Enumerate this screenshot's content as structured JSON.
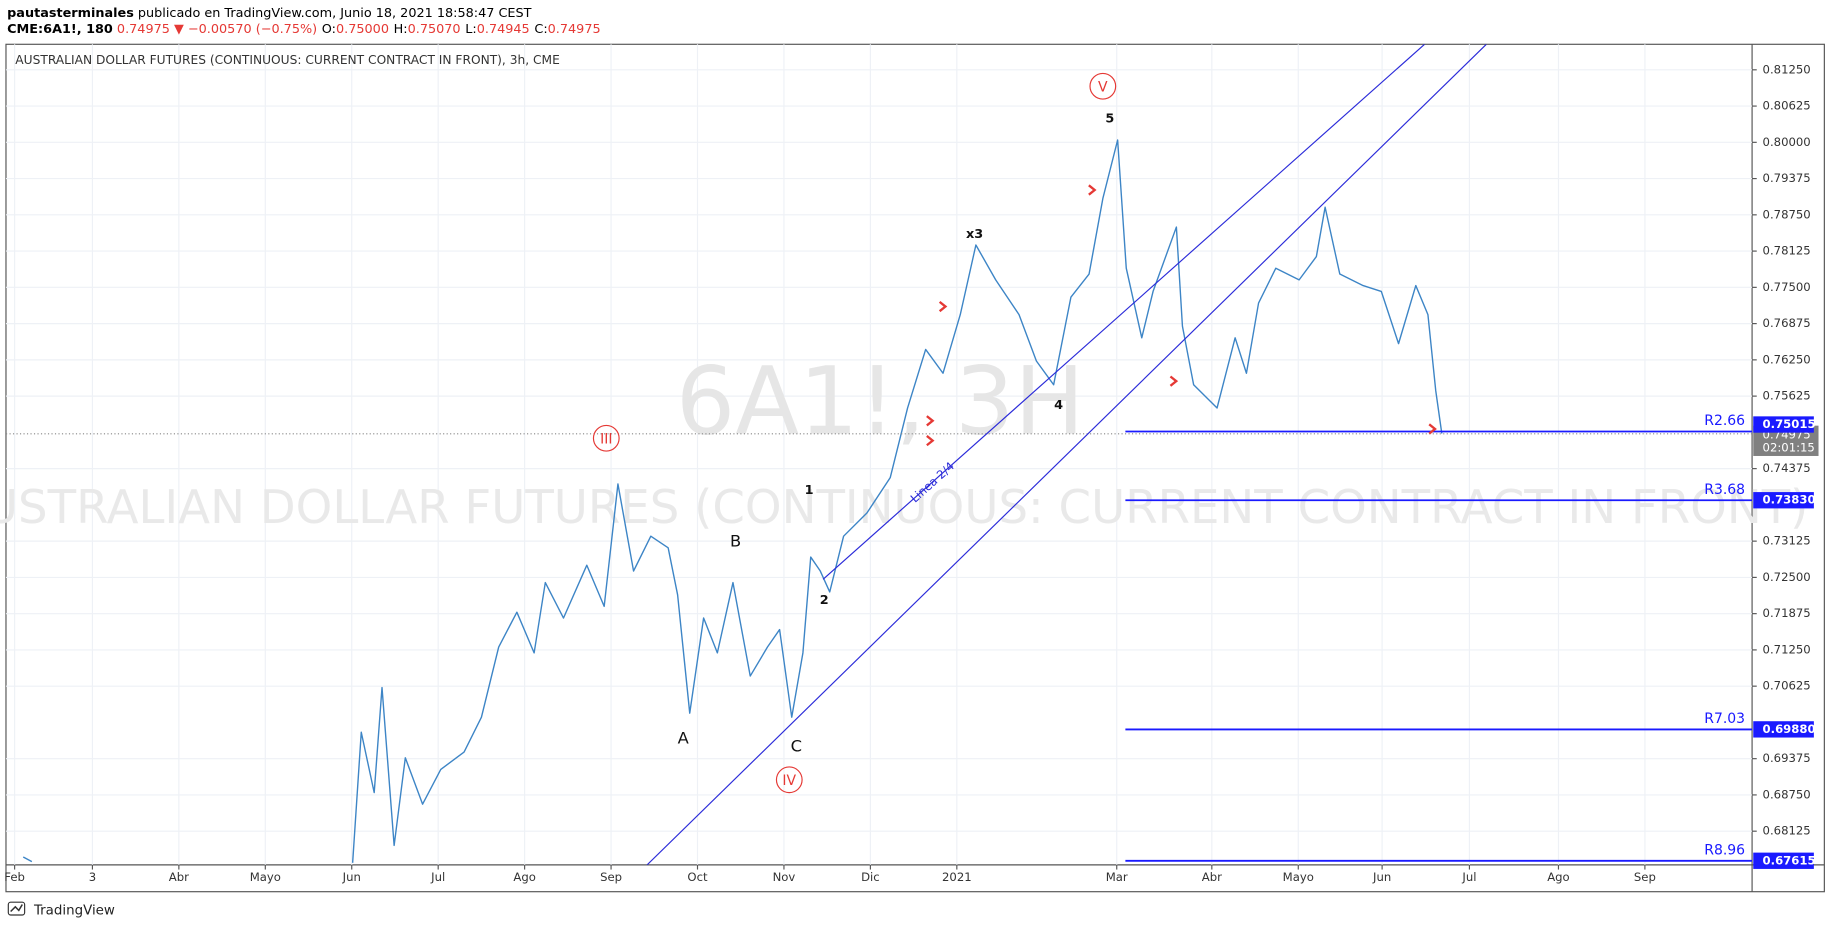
{
  "header": {
    "author": "pautasterminales",
    "published": "publicado en TradingView.com, Junio 18, 2021 18:58:47 CEST",
    "symbol": "CME:6A1!, 180",
    "last": "0.74975",
    "arrow": "▼",
    "change": "−0.00570 (−0.75%)",
    "ohlc": [
      {
        "key": "O:",
        "value": "0.75000"
      },
      {
        "key": "H:",
        "value": "0.75070"
      },
      {
        "key": "L:",
        "value": "0.74945"
      },
      {
        "key": "C:",
        "value": "0.74975"
      }
    ]
  },
  "footer": {
    "brand": "TradingView"
  },
  "chart_data": {
    "type": "line",
    "title": "AUSTRALIAN DOLLAR FUTURES (CONTINUOUS: CURRENT CONTRACT IN FRONT), 3h, CME",
    "watermark": [
      "6A1!, 3H",
      "AUSTRALIAN DOLLAR FUTURES (CONTINUOUS: CURRENT CONTRACT IN FRONT)"
    ],
    "color": "#3d85c6",
    "x": [
      2.2,
      2.3,
      null,
      6.01,
      6.11,
      6.26,
      6.35,
      6.49,
      6.62,
      6.82,
      7.03,
      7.3,
      7.5,
      7.7,
      7.91,
      8.11,
      8.24,
      8.45,
      8.72,
      8.92,
      9.08,
      9.26,
      9.46,
      9.66,
      9.77,
      9.91,
      10.07,
      10.23,
      10.41,
      10.61,
      10.81,
      10.95,
      11.09,
      11.22,
      11.31,
      11.42,
      11.53,
      11.69,
      11.96,
      12.23,
      12.43,
      12.64,
      12.84,
      13.04,
      13.22,
      13.45,
      13.72,
      13.92,
      14.12,
      14.32,
      14.53,
      14.69,
      14.86,
      14.96,
      15.14,
      15.27,
      15.54,
      15.61,
      15.74,
      16.01,
      16.22,
      16.35,
      16.49,
      16.69,
      16.96,
      17.16,
      17.26,
      17.43,
      17.7,
      17.91,
      18.11,
      18.31,
      18.45,
      18.54,
      18.61
    ],
    "values": [
      0.6768,
      0.676,
      null,
      0.6758,
      0.6983,
      0.6879,
      0.706,
      0.6788,
      0.6939,
      0.6859,
      0.6919,
      0.6949,
      0.7009,
      0.713,
      0.719,
      0.712,
      0.7241,
      0.718,
      0.7271,
      0.72,
      0.7411,
      0.7261,
      0.7321,
      0.7301,
      0.722,
      0.7016,
      0.718,
      0.712,
      0.7241,
      0.708,
      0.713,
      0.716,
      0.7009,
      0.712,
      0.7285,
      0.7261,
      0.7225,
      0.7321,
      0.7361,
      0.7422,
      0.7542,
      0.7643,
      0.7602,
      0.7703,
      0.7823,
      0.7763,
      0.7703,
      0.7623,
      0.7582,
      0.7733,
      0.7773,
      0.7904,
      0.8004,
      0.7783,
      0.7663,
      0.7743,
      0.7854,
      0.7683,
      0.7582,
      0.7542,
      0.7663,
      0.7602,
      0.7723,
      0.7783,
      0.7763,
      0.7803,
      0.7888,
      0.7773,
      0.7753,
      0.7743,
      0.7653,
      0.7753,
      0.7703,
      0.7572,
      0.7498
    ],
    "xlim": [
      2.0,
      22.2
    ],
    "xticks": [
      {
        "value": 2.1,
        "label": "Feb"
      },
      3,
      {
        "value": 4,
        "label": "Abr"
      },
      {
        "value": 5,
        "label": "Mayo"
      },
      {
        "value": 6,
        "label": "Jun"
      },
      {
        "value": 7,
        "label": "Jul"
      },
      {
        "value": 8,
        "label": "Ago"
      },
      {
        "value": 9,
        "label": "Sep"
      },
      {
        "value": 10,
        "label": "Oct"
      },
      {
        "value": 11,
        "label": "Nov"
      },
      {
        "value": 12,
        "label": "Dic"
      },
      {
        "value": 13,
        "label": "2021"
      },
      {
        "value": 14.85,
        "label": "Mar"
      },
      {
        "value": 15.95,
        "label": "Abr"
      },
      {
        "value": 16.95,
        "label": "Mayo"
      },
      {
        "value": 17.92,
        "label": "Jun"
      },
      {
        "value": 18.93,
        "label": "Jul"
      },
      {
        "value": 19.96,
        "label": "Ago"
      },
      {
        "value": 20.96,
        "label": "Sep"
      }
    ],
    "ylim": [
      0.67544,
      0.8169
    ],
    "yticks": [
      {
        "value": 0.8125,
        "label": "0.81250"
      },
      {
        "value": 0.80625,
        "label": "0.80625"
      },
      {
        "value": 0.8,
        "label": "0.80000"
      },
      {
        "value": 0.79375,
        "label": "0.79375"
      },
      {
        "value": 0.7875,
        "label": "0.78750"
      },
      {
        "value": 0.78125,
        "label": "0.78125"
      },
      {
        "value": 0.775,
        "label": "0.77500"
      },
      {
        "value": 0.76875,
        "label": "0.76875"
      },
      {
        "value": 0.7625,
        "label": "0.76250"
      },
      {
        "value": 0.75625,
        "label": "0.75625"
      },
      {
        "value": 0.74375,
        "label": "0.74375"
      },
      {
        "value": 0.73125,
        "label": "0.73125"
      },
      {
        "value": 0.725,
        "label": "0.72500"
      },
      {
        "value": 0.71875,
        "label": "0.71875"
      },
      {
        "value": 0.7125,
        "label": "0.71250"
      },
      {
        "value": 0.70625,
        "label": "0.70625"
      },
      {
        "value": 0.69375,
        "label": "0.69375"
      },
      {
        "value": 0.6875,
        "label": "0.68750"
      },
      {
        "value": 0.68125,
        "label": "0.68125"
      }
    ],
    "grid": true,
    "last_price": 0.74975,
    "countdown": "02:01:15",
    "levels": {
      "start_x": 14.95,
      "names": [
        "R2.66",
        "R3.68",
        "R7.03",
        "R8.96"
      ],
      "values": [
        0.75015,
        0.7383,
        0.6988,
        0.67615
      ],
      "value_labels": [
        "0.75015",
        "0.73830",
        "0.69880",
        "0.67615"
      ],
      "color": "#1a1aff"
    },
    "annotations": [
      "III",
      "IV",
      "V",
      "A",
      "B",
      "C",
      "1",
      "2",
      "4",
      "5",
      "x3",
      "Linea 2/4"
    ]
  }
}
